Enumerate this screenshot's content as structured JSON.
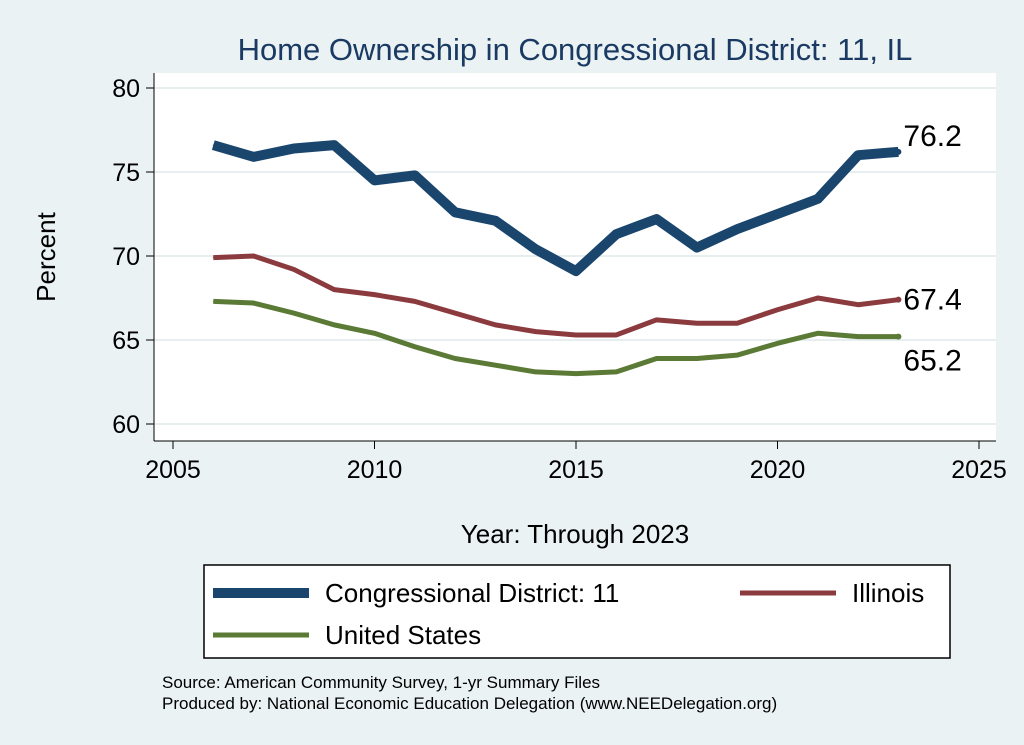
{
  "chart_data": {
    "type": "line",
    "title": "Home Ownership in Congressional District:  11, IL",
    "xlabel": "Year: Through 2023",
    "ylabel": "Percent",
    "xlim": [
      2005,
      2025
    ],
    "ylim": [
      60,
      80
    ],
    "x_ticks": [
      2005,
      2010,
      2015,
      2020,
      2025
    ],
    "y_ticks": [
      60,
      65,
      70,
      75,
      80
    ],
    "grid": true,
    "x": [
      2006,
      2007,
      2008,
      2009,
      2010,
      2011,
      2012,
      2013,
      2014,
      2015,
      2016,
      2017,
      2018,
      2019,
      2020,
      2021,
      2022,
      2023
    ],
    "series": [
      {
        "name": "Congressional District:  11",
        "color": "#1a466e",
        "values": [
          76.6,
          75.9,
          76.4,
          76.6,
          74.5,
          74.8,
          72.6,
          72.1,
          70.4,
          69.1,
          71.3,
          72.2,
          70.5,
          71.6,
          72.5,
          73.4,
          76.0,
          76.2
        ],
        "end_label": "76.2"
      },
      {
        "name": "Illinois",
        "color": "#8b3a3e",
        "values": [
          69.9,
          70.0,
          69.2,
          68.0,
          67.7,
          67.3,
          66.6,
          65.9,
          65.5,
          65.3,
          65.3,
          66.2,
          66.0,
          66.0,
          66.8,
          67.5,
          67.1,
          67.4
        ],
        "end_label": "67.4"
      },
      {
        "name": "United States",
        "color": "#5a7a35",
        "values": [
          67.3,
          67.2,
          66.6,
          65.9,
          65.4,
          64.6,
          63.9,
          63.5,
          63.1,
          63.0,
          63.1,
          63.9,
          63.9,
          64.1,
          64.8,
          65.4,
          65.2,
          65.2
        ],
        "end_label": "65.2"
      }
    ],
    "legend_position": "bottom"
  },
  "source_lines": [
    "Source: American Community Survey, 1-yr Summary Files",
    "Produced by: National Economic Education Delegation (www.NEEDelegation.org)"
  ]
}
